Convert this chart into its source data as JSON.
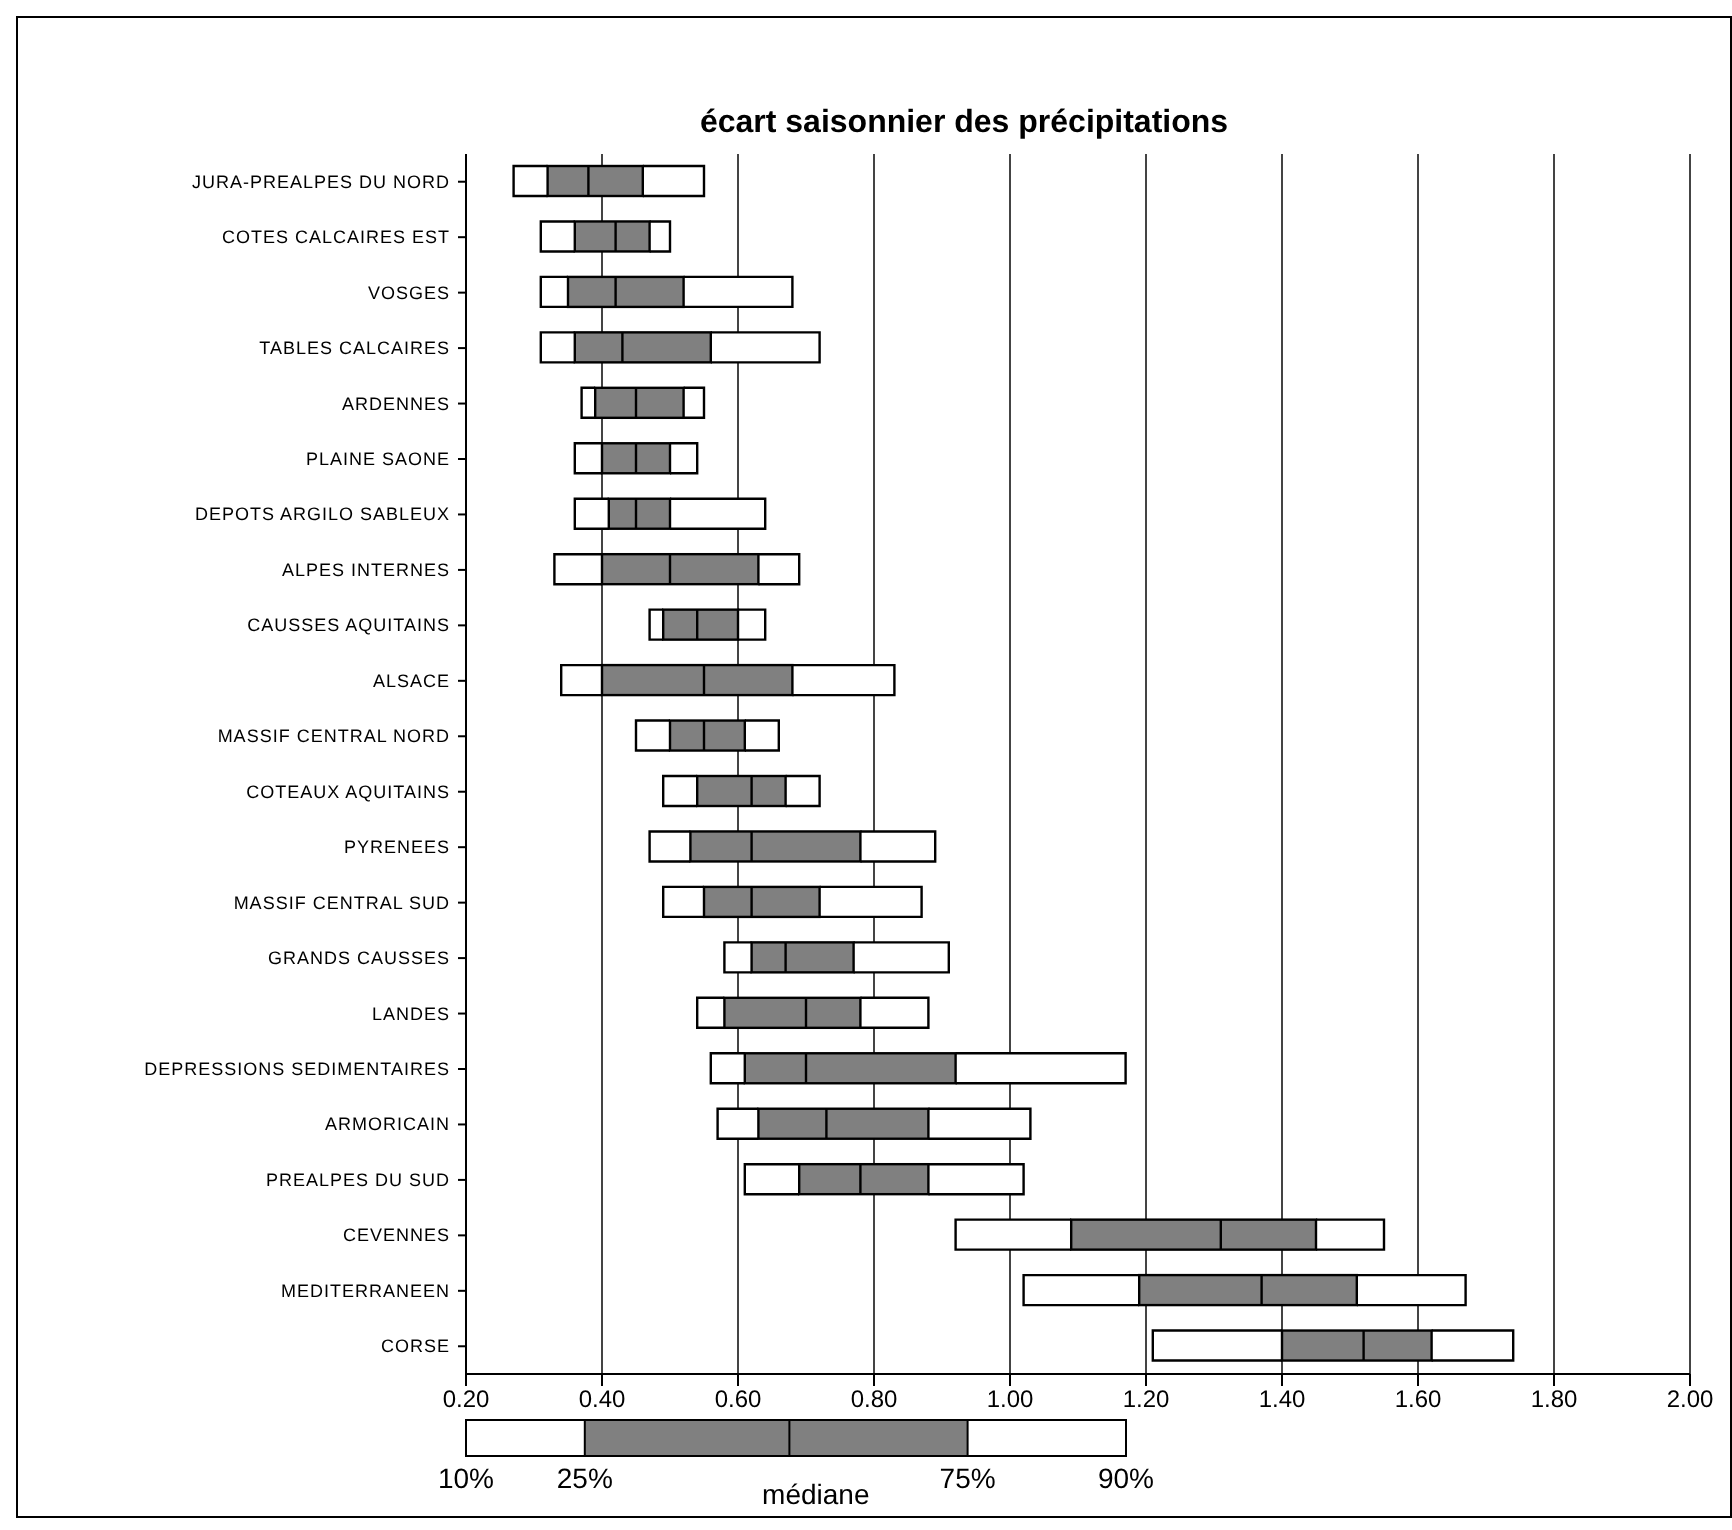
{
  "chart_data": {
    "type": "box",
    "orientation": "horizontal",
    "title": "écart saisonnier des précipitations",
    "categories": [
      "JURA-PREALPES DU NORD",
      "COTES CALCAIRES EST",
      "VOSGES",
      "TABLES CALCAIRES",
      "ARDENNES",
      "PLAINE SAONE",
      "DEPOTS ARGILO SABLEUX",
      "ALPES INTERNES",
      "CAUSSES AQUITAINS",
      "ALSACE",
      "MASSIF CENTRAL NORD",
      "COTEAUX AQUITAINS",
      "PYRENEES",
      "MASSIF CENTRAL SUD",
      "GRANDS CAUSSES",
      "LANDES",
      "DEPRESSIONS SEDIMENTAIRES",
      "ARMORICAIN",
      "PREALPES DU SUD",
      "CEVENNES",
      "MEDITERRANEEN",
      "CORSE"
    ],
    "boxes": [
      {
        "low": 0.27,
        "q1": 0.32,
        "median": 0.38,
        "q3": 0.46,
        "high": 0.55
      },
      {
        "low": 0.31,
        "q1": 0.36,
        "median": 0.42,
        "q3": 0.47,
        "high": 0.5
      },
      {
        "low": 0.31,
        "q1": 0.35,
        "median": 0.42,
        "q3": 0.52,
        "high": 0.68
      },
      {
        "low": 0.31,
        "q1": 0.36,
        "median": 0.43,
        "q3": 0.56,
        "high": 0.72
      },
      {
        "low": 0.37,
        "q1": 0.39,
        "median": 0.45,
        "q3": 0.52,
        "high": 0.55
      },
      {
        "low": 0.36,
        "q1": 0.4,
        "median": 0.45,
        "q3": 0.5,
        "high": 0.54
      },
      {
        "low": 0.36,
        "q1": 0.41,
        "median": 0.45,
        "q3": 0.5,
        "high": 0.64
      },
      {
        "low": 0.33,
        "q1": 0.4,
        "median": 0.5,
        "q3": 0.63,
        "high": 0.69
      },
      {
        "low": 0.47,
        "q1": 0.49,
        "median": 0.54,
        "q3": 0.6,
        "high": 0.64
      },
      {
        "low": 0.34,
        "q1": 0.4,
        "median": 0.55,
        "q3": 0.68,
        "high": 0.83
      },
      {
        "low": 0.45,
        "q1": 0.5,
        "median": 0.55,
        "q3": 0.61,
        "high": 0.66
      },
      {
        "low": 0.49,
        "q1": 0.54,
        "median": 0.62,
        "q3": 0.67,
        "high": 0.72
      },
      {
        "low": 0.47,
        "q1": 0.53,
        "median": 0.62,
        "q3": 0.78,
        "high": 0.89
      },
      {
        "low": 0.49,
        "q1": 0.55,
        "median": 0.62,
        "q3": 0.72,
        "high": 0.87
      },
      {
        "low": 0.58,
        "q1": 0.62,
        "median": 0.67,
        "q3": 0.77,
        "high": 0.91
      },
      {
        "low": 0.54,
        "q1": 0.58,
        "median": 0.7,
        "q3": 0.78,
        "high": 0.88
      },
      {
        "low": 0.56,
        "q1": 0.61,
        "median": 0.7,
        "q3": 0.92,
        "high": 1.17
      },
      {
        "low": 0.57,
        "q1": 0.63,
        "median": 0.73,
        "q3": 0.88,
        "high": 1.03
      },
      {
        "low": 0.61,
        "q1": 0.69,
        "median": 0.78,
        "q3": 0.88,
        "high": 1.02
      },
      {
        "low": 0.92,
        "q1": 1.09,
        "median": 1.31,
        "q3": 1.45,
        "high": 1.55
      },
      {
        "low": 1.02,
        "q1": 1.19,
        "median": 1.37,
        "q3": 1.51,
        "high": 1.67
      },
      {
        "low": 1.21,
        "q1": 1.4,
        "median": 1.52,
        "q3": 1.62,
        "high": 1.74
      }
    ],
    "color": "#808080",
    "xlim": [
      0.2,
      2.0
    ],
    "xticks": [
      {
        "value": 0.2,
        "label": "0.20"
      },
      {
        "value": 0.4,
        "label": "0.40"
      },
      {
        "value": 0.6,
        "label": "0.60"
      },
      {
        "value": 0.8,
        "label": "0.80"
      },
      {
        "value": 1.0,
        "label": "1.00"
      },
      {
        "value": 1.2,
        "label": "1.20"
      },
      {
        "value": 1.4,
        "label": "1.40"
      },
      {
        "value": 1.6,
        "label": "1.60"
      },
      {
        "value": 1.8,
        "label": "1.80"
      },
      {
        "value": 2.0,
        "label": "2.00"
      }
    ],
    "grid": "x",
    "annotations": [
      "10%",
      "25%",
      "médiane",
      "75%",
      "90%"
    ]
  }
}
